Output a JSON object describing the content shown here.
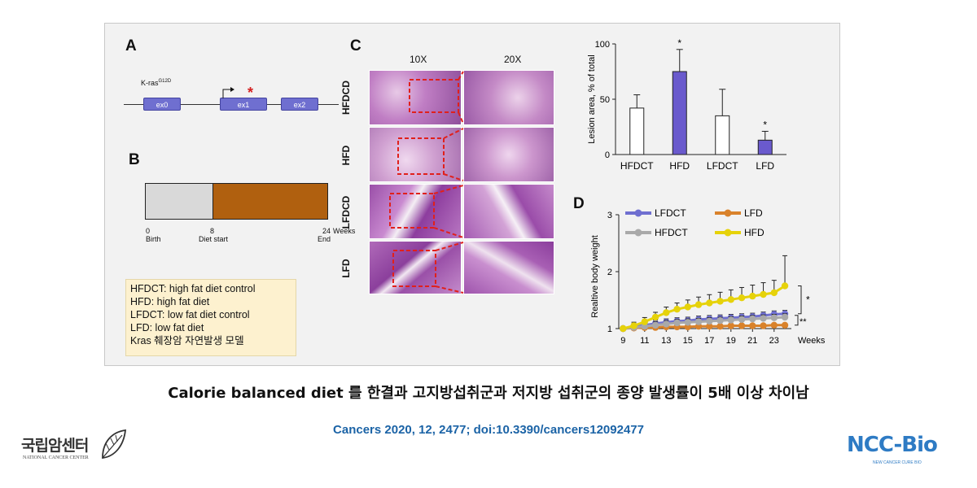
{
  "panels": {
    "A": {
      "letter": "A",
      "gene_label": "K-ras",
      "gene_superscript": "G12D",
      "exons": [
        "ex0",
        "ex1",
        "ex2"
      ],
      "mutation_mark": "*"
    },
    "B": {
      "letter": "B",
      "ticks": [
        {
          "value": "0",
          "label": "Birth"
        },
        {
          "value": "8",
          "label": "Diet start"
        },
        {
          "value": "24",
          "label": "End"
        }
      ],
      "unit": "Weeks",
      "colors": {
        "pre_diet": "#d9d9d9",
        "diet": "#b0600f"
      }
    },
    "C": {
      "letter": "C",
      "columns": [
        "10X",
        "20X"
      ],
      "rows": [
        "HFDCD",
        "HFD",
        "LFDCD",
        "LFD"
      ]
    },
    "D": {
      "letter": "D"
    }
  },
  "legend_notes": [
    "HFDCT: high fat diet control",
    "HFD: high fat diet",
    "LFDCT: low fat diet control",
    "LFD: low fat diet",
    "Kras 췌장암 자연발생 모델"
  ],
  "chart_data": [
    {
      "type": "bar",
      "panel": "C",
      "ylabel": "Lesion area, % of total",
      "categories": [
        "HFDCT",
        "HFD",
        "LFDCT",
        "LFD"
      ],
      "values": [
        42,
        75,
        35,
        13
      ],
      "errors": [
        12,
        20,
        24,
        8
      ],
      "significance": [
        "",
        "*",
        "",
        "*"
      ],
      "ylim": [
        0,
        100
      ],
      "yticks": [
        0,
        50,
        100
      ],
      "colors": {
        "control": "#ffffff",
        "treated": "#6a5acd"
      }
    },
    {
      "type": "line",
      "panel": "D",
      "ylabel": "Realtive body weight",
      "xlabel": "Weeks",
      "x": [
        9,
        10,
        11,
        12,
        13,
        14,
        15,
        16,
        17,
        18,
        19,
        20,
        21,
        22,
        23,
        24
      ],
      "xticks": [
        9,
        11,
        13,
        15,
        17,
        19,
        21,
        23
      ],
      "yticks": [
        1,
        2,
        3
      ],
      "ylim": [
        1,
        3
      ],
      "legend_position": "top",
      "series": [
        {
          "name": "LFDCT",
          "color": "#6f6fd0",
          "values": [
            1.0,
            1.03,
            1.06,
            1.09,
            1.11,
            1.13,
            1.14,
            1.16,
            1.17,
            1.18,
            1.19,
            1.2,
            1.21,
            1.23,
            1.25,
            1.26
          ]
        },
        {
          "name": "LFD",
          "color": "#d9822b",
          "values": [
            1.0,
            1.01,
            1.02,
            1.02,
            1.03,
            1.03,
            1.03,
            1.04,
            1.04,
            1.04,
            1.05,
            1.05,
            1.05,
            1.05,
            1.06,
            1.06
          ]
        },
        {
          "name": "HFDCT",
          "color": "#a9a9a9",
          "values": [
            1.0,
            1.02,
            1.04,
            1.06,
            1.08,
            1.1,
            1.11,
            1.12,
            1.13,
            1.14,
            1.15,
            1.16,
            1.17,
            1.18,
            1.19,
            1.2
          ]
        },
        {
          "name": "HFD",
          "color": "#e6d20a",
          "values": [
            1.0,
            1.05,
            1.12,
            1.2,
            1.28,
            1.34,
            1.38,
            1.42,
            1.45,
            1.48,
            1.51,
            1.54,
            1.57,
            1.6,
            1.63,
            1.75
          ]
        }
      ],
      "annotations": [
        "*",
        "**"
      ]
    }
  ],
  "caption": "Calorie balanced diet 를 한결과 고지방섭취군과 저지방 섭취군의 종양 발생률이 5배 이상 차이남",
  "citation": "Cancers 2020, 12, 2477; doi:10.3390/cancers12092477",
  "logos": {
    "left": {
      "name": "국립암센터",
      "sub": "NATIONAL CANCER CENTER"
    },
    "right": {
      "name": "NCC-Bio",
      "sub": "NEW CANCER CURE BIO"
    }
  }
}
